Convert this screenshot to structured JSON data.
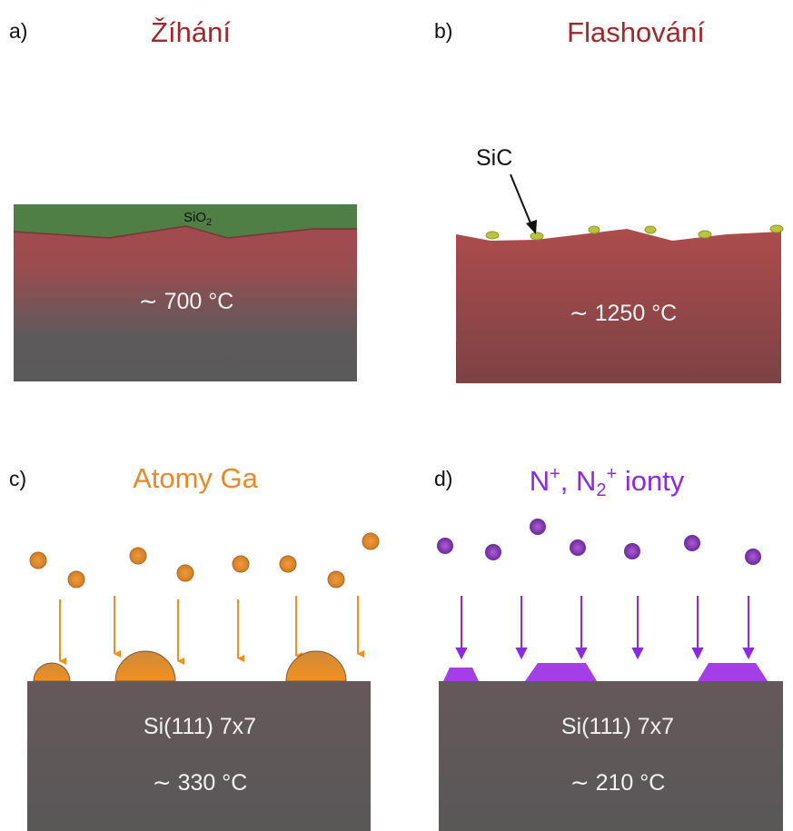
{
  "panels": [
    {
      "label": "a)",
      "title": "Žíhání",
      "layer": [
        "SiO",
        "2"
      ],
      "temperature": "∼ 700 °C"
    },
    {
      "label": "b)",
      "title": "Flashování",
      "annotation": "SiC",
      "temperature": "∼ 1250 °C"
    },
    {
      "label": "c)",
      "title": "Atomy Ga",
      "substrate": "Si(111) 7x7",
      "temperature": "∼ 330 °C"
    },
    {
      "label": "d)",
      "title": [
        "N",
        "+",
        ", N",
        "2",
        "+",
        " ionty"
      ],
      "substrate": "Si(111) 7x7",
      "temperature": "∼ 210 °C"
    }
  ]
}
